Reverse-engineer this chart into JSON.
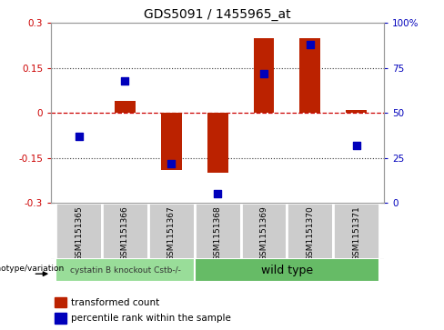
{
  "title": "GDS5091 / 1455965_at",
  "samples": [
    "GSM1151365",
    "GSM1151366",
    "GSM1151367",
    "GSM1151368",
    "GSM1151369",
    "GSM1151370",
    "GSM1151371"
  ],
  "transformed_counts": [
    0.0,
    0.04,
    -0.19,
    -0.2,
    0.25,
    0.25,
    0.01
  ],
  "percentile_ranks": [
    37,
    68,
    22,
    5,
    72,
    88,
    32
  ],
  "ylim_left": [
    -0.3,
    0.3
  ],
  "ylim_right": [
    0,
    100
  ],
  "yticks_left": [
    -0.3,
    -0.15,
    0.0,
    0.15,
    0.3
  ],
  "ytick_labels_left": [
    "-0.3",
    "-0.15",
    "0",
    "0.15",
    "0.3"
  ],
  "yticks_right": [
    0,
    25,
    50,
    75,
    100
  ],
  "ytick_labels_right": [
    "0",
    "25",
    "50",
    "75",
    "100%"
  ],
  "bar_color": "#BB2200",
  "dot_color": "#0000BB",
  "zero_line_color": "#CC0000",
  "dotted_line_color": "#333333",
  "background_color": "#FFFFFF",
  "group1_label": "cystatin B knockout Cstb-/-",
  "group2_label": "wild type",
  "group1_color": "#99DD99",
  "group2_color": "#66BB66",
  "group1_samples": 3,
  "group2_samples": 4,
  "legend_items": [
    "transformed count",
    "percentile rank within the sample"
  ],
  "legend_colors": [
    "#BB2200",
    "#0000BB"
  ],
  "genotype_label": "genotype/variation",
  "bar_width": 0.45,
  "dot_size": 40,
  "sample_box_color": "#CCCCCC",
  "sample_box_edge": "#FFFFFF"
}
